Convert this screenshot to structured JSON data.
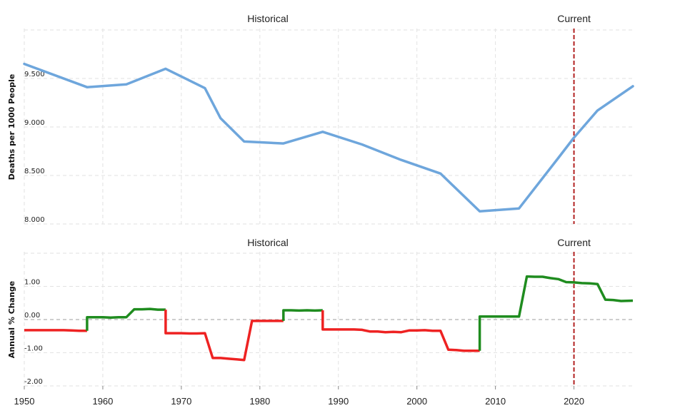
{
  "chart_data": [
    {
      "type": "line",
      "ylabel": "Deaths per 1000 People",
      "ylim": [
        8.0,
        10.0
      ],
      "xlim": [
        1950,
        2027.5
      ],
      "yticks": [
        8.0,
        8.5,
        9.0,
        9.5
      ],
      "ytick_labels": [
        "8.000",
        "8.500",
        "9.000",
        "9.500"
      ],
      "grid": true,
      "annotations": [
        "Historical",
        "Current"
      ],
      "current_year": 2020,
      "color": "#6ea6dc",
      "x": [
        1950,
        1958,
        1963,
        1968,
        1973,
        1975,
        1978,
        1983,
        1988,
        1993,
        1998,
        2003,
        2008,
        2013,
        2018,
        2020,
        2023,
        2027.5
      ],
      "values": [
        9.65,
        9.41,
        9.44,
        9.6,
        9.4,
        9.09,
        8.85,
        8.83,
        8.95,
        8.82,
        8.66,
        8.52,
        8.13,
        8.16,
        8.68,
        8.89,
        9.17,
        9.42
      ]
    },
    {
      "type": "line",
      "ylabel": "Annual % Change",
      "ylim": [
        -2.0,
        2.0
      ],
      "xlim": [
        1950,
        2027.5
      ],
      "yticks": [
        -2.0,
        -1.0,
        0.0,
        1.0
      ],
      "ytick_labels": [
        "-2.00",
        "-1.00",
        "0.00",
        "1.00"
      ],
      "xticks": [
        1950,
        1960,
        1970,
        1980,
        1990,
        2000,
        2010,
        2020
      ],
      "grid": true,
      "annotations": [
        "Historical",
        "Current"
      ],
      "current_year": 2020,
      "positive_color": "#1f8c1f",
      "negative_color": "#ee2222",
      "x": [
        1950,
        1955,
        1956,
        1957,
        1958,
        1959,
        1960,
        1961,
        1962,
        1963,
        1964,
        1965,
        1966,
        1967,
        1968,
        1969,
        1970,
        1971,
        1972,
        1973,
        1974,
        1975,
        1976,
        1977,
        1978,
        1979,
        1980,
        1981,
        1982,
        1983,
        1984,
        1985,
        1986,
        1987,
        1988,
        1989,
        1990,
        1991,
        1992,
        1993,
        1994,
        1995,
        1996,
        1997,
        1998,
        1999,
        2000,
        2001,
        2002,
        2003,
        2004,
        2005,
        2006,
        2007,
        2008,
        2009,
        2010,
        2011,
        2012,
        2013,
        2014,
        2015,
        2016,
        2017,
        2018,
        2019,
        2020,
        2021,
        2022,
        2023,
        2024,
        2025,
        2026,
        2027.5
      ],
      "values": [
        -0.32,
        -0.32,
        -0.33,
        -0.34,
        -0.34,
        0.07,
        0.07,
        0.06,
        0.07,
        0.07,
        0.31,
        0.31,
        0.32,
        0.3,
        0.3,
        -0.41,
        -0.41,
        -0.42,
        -0.42,
        -0.41,
        -1.16,
        -1.16,
        -1.18,
        -1.2,
        -1.22,
        -0.04,
        -0.04,
        -0.04,
        -0.04,
        -0.04,
        0.28,
        0.27,
        0.28,
        0.27,
        0.28,
        -0.3,
        -0.3,
        -0.3,
        -0.3,
        -0.31,
        -0.36,
        -0.36,
        -0.38,
        -0.37,
        -0.38,
        -0.33,
        -0.33,
        -0.32,
        -0.34,
        -0.34,
        -0.91,
        -0.92,
        -0.94,
        -0.94,
        -0.94,
        0.09,
        0.09,
        0.09,
        0.09,
        0.09,
        1.3,
        1.29,
        1.29,
        1.25,
        1.22,
        1.13,
        1.12,
        1.1,
        1.09,
        1.07,
        0.6,
        0.59,
        0.56,
        0.57
      ]
    }
  ]
}
